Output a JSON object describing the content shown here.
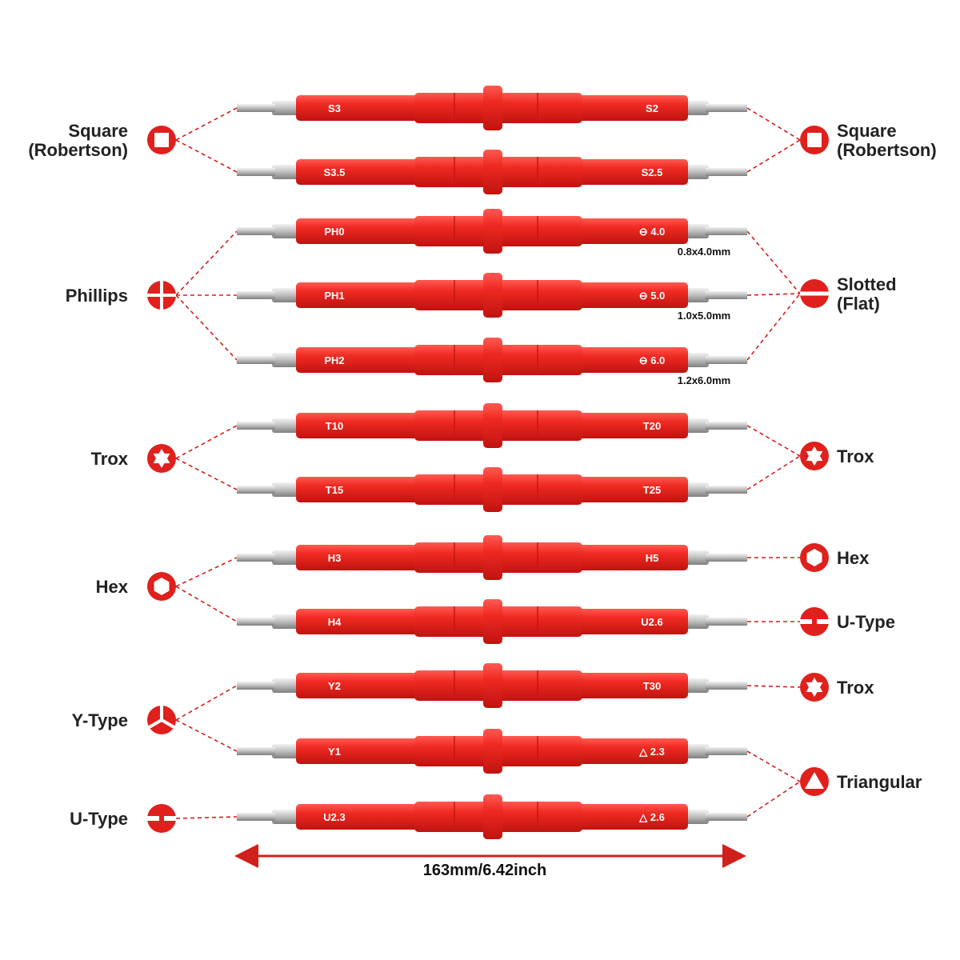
{
  "colors": {
    "handle": "#e8231f",
    "handle_dark": "#c81512",
    "handle_light": "#ff4a44",
    "metal": "#c9c9c9",
    "metal_dark": "#8e8e8e",
    "icon": "#e0201c",
    "dash": "#d0201c",
    "text": "#222222"
  },
  "bits": [
    {
      "left": "S3",
      "right": "S2",
      "left_tip": "square-icon",
      "right_tip": "square-icon"
    },
    {
      "left": "S3.5",
      "right": "S2.5",
      "left_tip": "square-icon",
      "right_tip": "square-icon"
    },
    {
      "left": "PH0",
      "right": "⊖ 4.0",
      "left_tip": "phillips-icon",
      "right_tip": "slotted-icon",
      "spec": "0.8x4.0mm"
    },
    {
      "left": "PH1",
      "right": "⊖ 5.0",
      "left_tip": "phillips-icon",
      "right_tip": "slotted-icon",
      "spec": "1.0x5.0mm"
    },
    {
      "left": "PH2",
      "right": "⊖ 6.0",
      "left_tip": "phillips-icon",
      "right_tip": "slotted-icon",
      "spec": "1.2x6.0mm"
    },
    {
      "left": "T10",
      "right": "T20",
      "left_tip": "trox-icon",
      "right_tip": "trox-icon"
    },
    {
      "left": "T15",
      "right": "T25",
      "left_tip": "trox-icon",
      "right_tip": "trox-icon"
    },
    {
      "left": "H3",
      "right": "H5",
      "left_tip": "hex-icon",
      "right_tip": "hex-icon"
    },
    {
      "left": "H4",
      "right": "U2.6",
      "left_tip": "hex-icon",
      "right_tip": "u-type-icon"
    },
    {
      "left": "Y2",
      "right": "T30",
      "left_tip": "y-type-icon",
      "right_tip": "trox-icon"
    },
    {
      "left": "Y1",
      "right": "△ 2.3",
      "left_tip": "y-type-icon",
      "right_tip": "triangular-icon"
    },
    {
      "left": "U2.3",
      "right": "△ 2.6",
      "left_tip": "u-type-icon",
      "right_tip": "triangular-icon"
    }
  ],
  "left_labels": [
    {
      "text1": "Square",
      "text2": "(Robertson)",
      "icon": "square-icon"
    },
    {
      "text1": "Phillips",
      "text2": "",
      "icon": "phillips-icon"
    },
    {
      "text1": "Trox",
      "text2": "",
      "icon": "trox-icon"
    },
    {
      "text1": "Hex",
      "text2": "",
      "icon": "hex-icon"
    },
    {
      "text1": "Y-Type",
      "text2": "",
      "icon": "y-type-icon"
    },
    {
      "text1": "U-Type",
      "text2": "",
      "icon": "u-type-icon"
    }
  ],
  "right_labels": [
    {
      "text1": "Square",
      "text2": "(Robertson)",
      "icon": "square-icon"
    },
    {
      "text1": "Slotted",
      "text2": "(Flat)",
      "icon": "slotted-icon"
    },
    {
      "text1": "Trox",
      "text2": "",
      "icon": "trox-icon"
    },
    {
      "text1": "Hex",
      "text2": "",
      "icon": "hex-icon"
    },
    {
      "text1": "U-Type",
      "text2": "",
      "icon": "u-type-icon"
    },
    {
      "text1": "Trox",
      "text2": "",
      "icon": "trox-icon"
    },
    {
      "text1": "Triangular",
      "text2": "",
      "icon": "triangular-icon"
    }
  ],
  "dimension": "163mm/6.42inch"
}
